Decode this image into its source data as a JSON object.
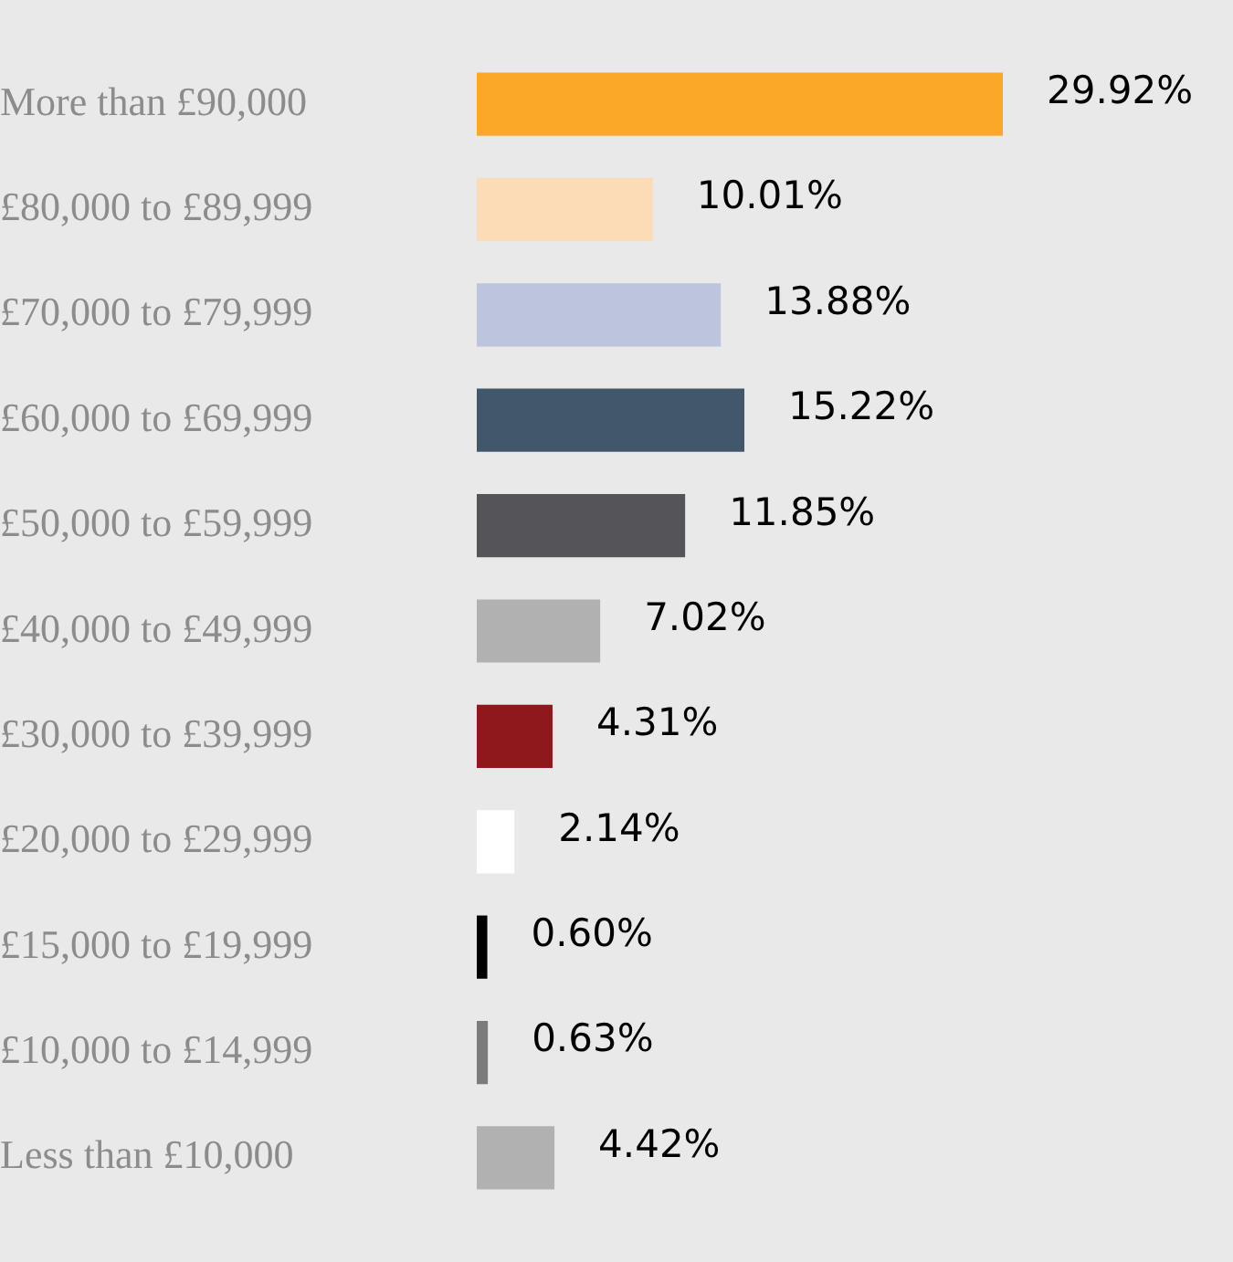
{
  "chart_data": {
    "type": "bar",
    "orientation": "horizontal",
    "tick_labels": "y",
    "categories": [
      "More than £90,000",
      "£80,000 to £89,999",
      "£70,000 to £79,999",
      "£60,000 to £69,999",
      "£50,000 to £59,999",
      "£40,000 to £49,999",
      "£30,000 to £39,999",
      "£20,000 to £29,999",
      "£15,000 to £19,999",
      "£10,000 to £14,999",
      "Less than £10,000"
    ],
    "values": [
      29.92,
      10.01,
      13.88,
      15.22,
      11.85,
      7.02,
      4.31,
      2.14,
      0.6,
      0.63,
      4.42
    ],
    "value_labels": [
      "29.92%",
      "10.01%",
      "13.88%",
      "15.22%",
      "11.85%",
      "7.02%",
      "4.31%",
      "2.14%",
      "0.60%",
      "0.63%",
      "4.42%"
    ],
    "colors": [
      "#fba829",
      "#fcdcb6",
      "#bcc4de",
      "#43576a",
      "#555559",
      "#b1b1b1",
      "#8d191d",
      "#ffffff",
      "#000000",
      "#7c7c7c",
      "#b1b1b1"
    ]
  }
}
